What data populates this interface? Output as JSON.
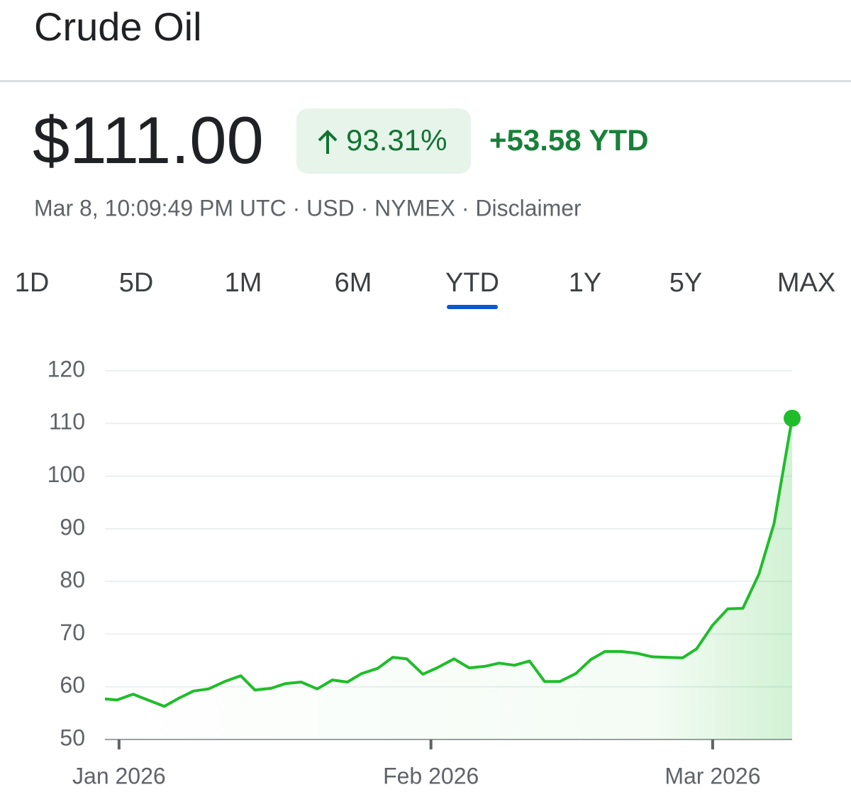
{
  "header": {
    "title": "Crude Oil",
    "price": "$111.00",
    "change_pct": "93.31%",
    "change_abs": "+53.58 YTD",
    "subline": "Mar 8, 10:09:49 PM UTC · USD · NYMEX · Disclaimer"
  },
  "tabs": {
    "labels": [
      "1D",
      "5D",
      "1M",
      "6M",
      "YTD",
      "1Y",
      "5Y",
      "MAX"
    ],
    "selected_index": 4
  },
  "chart_data": {
    "type": "line",
    "color": "#1fbd2a",
    "x": [
      -0.4,
      0.8,
      2.4,
      4.0,
      5.5,
      6.9,
      8.4,
      9.9,
      11.5,
      13.1,
      14.5,
      16.1,
      17.5,
      19.1,
      20.7,
      22.2,
      23.7,
      25.1,
      26.7,
      28.2,
      29.6,
      31.2,
      32.6,
      34.3,
      35.8,
      37.4,
      38.8,
      40.3,
      41.8,
      43.3,
      44.8,
      46.4,
      47.9,
      49.3,
      50.9,
      52.4,
      54.0,
      55.4,
      57.0,
      58.4,
      60.0,
      61.5,
      63.0,
      64.6,
      66.1,
      67.9
    ],
    "values": [
      57.7,
      57.5,
      58.6,
      57.4,
      56.3,
      57.8,
      59.2,
      59.6,
      61.0,
      62.1,
      59.4,
      59.7,
      60.6,
      60.9,
      59.6,
      61.3,
      60.9,
      62.5,
      63.5,
      65.6,
      65.3,
      62.4,
      63.6,
      65.3,
      63.6,
      63.9,
      64.5,
      64.1,
      64.9,
      61.0,
      61.0,
      62.5,
      65.2,
      66.7,
      66.7,
      66.4,
      65.7,
      65.6,
      65.5,
      67.2,
      71.7,
      74.8,
      74.9,
      81.4,
      91.0,
      111.0
    ],
    "xlim": [
      -0.4,
      67.9
    ],
    "xticks": [
      {
        "value": 1,
        "label": "Jan 2026"
      },
      {
        "value": 32,
        "label": "Feb 2026"
      },
      {
        "value": 60,
        "label": "Mar 2026"
      }
    ],
    "ylim": [
      50,
      120
    ],
    "yticks": [
      50,
      60,
      70,
      80,
      90,
      100,
      110,
      120
    ],
    "grid": true
  }
}
